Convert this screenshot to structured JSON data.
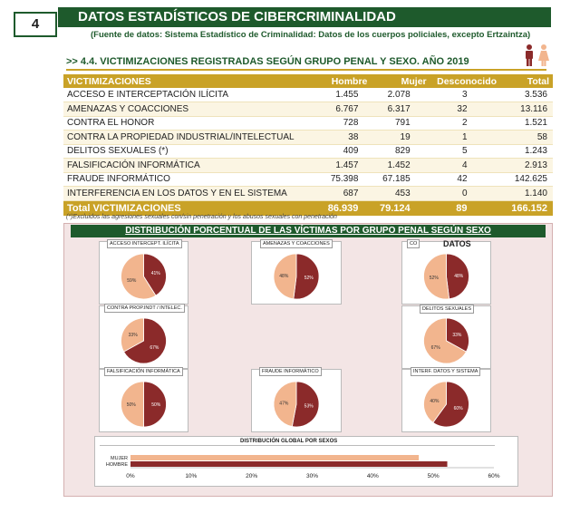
{
  "header": {
    "page_number": "4",
    "title": "DATOS ESTADÍSTICOS DE CIBERCRIMINALIDAD",
    "source": "(Fuente de datos: Sistema Estadístico de Criminalidad: Datos de los cuerpos policiales, excepto Ertzaintza)"
  },
  "section": {
    "title": ">> 4.4. VICTIMIZACIONES REGISTRADAS SEGÚN GRUPO PENAL Y SEXO. AÑO 2019",
    "icon": "man-woman-icon",
    "colors": {
      "man": "#8b2a2a",
      "woman": "#f2b58e"
    }
  },
  "table": {
    "headers": [
      "VICTIMIZACIONES",
      "Hombre",
      "Mujer",
      "Desconocido",
      "Total"
    ],
    "rows": [
      [
        "ACCESO  E INTERCEPTACIÓN ILÍCITA",
        "1.455",
        "2.078",
        "3",
        "3.536"
      ],
      [
        "AMENAZAS Y COACCIONES",
        "6.767",
        "6.317",
        "32",
        "13.116"
      ],
      [
        "CONTRA EL HONOR",
        "728",
        "791",
        "2",
        "1.521"
      ],
      [
        "CONTRA LA PROPIEDAD INDUSTRIAL/INTELECTUAL",
        "38",
        "19",
        "1",
        "58"
      ],
      [
        "DELITOS SEXUALES (*)",
        "409",
        "829",
        "5",
        "1.243"
      ],
      [
        "FALSIFICACIÓN INFORMÁTICA",
        "1.457",
        "1.452",
        "4",
        "2.913"
      ],
      [
        "FRAUDE INFORMÁTICO",
        "75.398",
        "67.185",
        "42",
        "142.625"
      ],
      [
        "INTERFERENCIA EN LOS DATOS Y EN EL SISTEMA",
        "687",
        "453",
        "0",
        "1.140"
      ]
    ],
    "total": [
      "Total VICTIMIZACIONES",
      "86.939",
      "79.124",
      "89",
      "166.152"
    ],
    "footnote": "(*)Excluidos las agresiones sexuales con/sin penetración y los abusos sexuales con penetración"
  },
  "panel": {
    "title": "DISTRIBUCIÓN PORCENTUAL DE LAS VÍCTIMAS POR GRUPO PENAL SEGÚN SEXO",
    "overlay_label": "DATOS",
    "colors": {
      "hombre": "#8b2a2a",
      "mujer": "#f2b58e",
      "panel_bg": "#f3e5e5",
      "header_green": "#1e5a2c",
      "gold": "#c9a227"
    }
  },
  "chart_data": [
    {
      "type": "pie",
      "title": "ACCESO INTERCEPT. ILÍCITA",
      "labels": [
        "Hombre",
        "Mujer"
      ],
      "values": [
        41,
        59
      ],
      "data_labels": [
        "41%",
        "59%"
      ]
    },
    {
      "type": "pie",
      "title": "AMENAZAS Y COACCIONES",
      "labels": [
        "Hombre",
        "Mujer"
      ],
      "values": [
        52,
        48
      ],
      "data_labels": [
        "52%",
        "48%"
      ]
    },
    {
      "type": "pie",
      "title": "CO",
      "labels": [
        "Hombre",
        "Mujer"
      ],
      "values": [
        48,
        52
      ],
      "data_labels": [
        "48%",
        "52%"
      ]
    },
    {
      "type": "pie",
      "title": "CONTRA PROP.INDT / INTELEC.",
      "labels": [
        "Hombre",
        "Mujer"
      ],
      "values": [
        67,
        33
      ],
      "data_labels": [
        "67%",
        "33%"
      ]
    },
    {
      "type": "pie",
      "title": "DELITOS SEXUALES",
      "labels": [
        "Hombre",
        "Mujer"
      ],
      "values": [
        33,
        67
      ],
      "data_labels": [
        "33%",
        "67%"
      ]
    },
    {
      "type": "pie",
      "title": "FALSIFICACIÓN INFORMÁTICA",
      "labels": [
        "Hombre",
        "Mujer"
      ],
      "values": [
        50,
        50
      ],
      "data_labels": [
        "50%",
        "50%"
      ]
    },
    {
      "type": "pie",
      "title": "FRAUDE INFORMÁTICO",
      "labels": [
        "Hombre",
        "Mujer"
      ],
      "values": [
        53,
        47
      ],
      "data_labels": [
        "53%",
        "47%"
      ]
    },
    {
      "type": "pie",
      "title": "INTERF. DATOS Y SISTEMA",
      "labels": [
        "Hombre",
        "Mujer"
      ],
      "values": [
        60,
        40
      ],
      "data_labels": [
        "60%",
        "40%"
      ]
    },
    {
      "type": "bar",
      "orientation": "horizontal",
      "title": "DISTRIBUCIÓN GLOBAL POR SEXOS",
      "categories": [
        "MUJER",
        "HOMBRE"
      ],
      "values": [
        47.6,
        52.3
      ],
      "xlim": [
        0,
        60
      ],
      "x_ticks": [
        "0%",
        "10%",
        "20%",
        "30%",
        "40%",
        "50%",
        "60%"
      ]
    }
  ]
}
